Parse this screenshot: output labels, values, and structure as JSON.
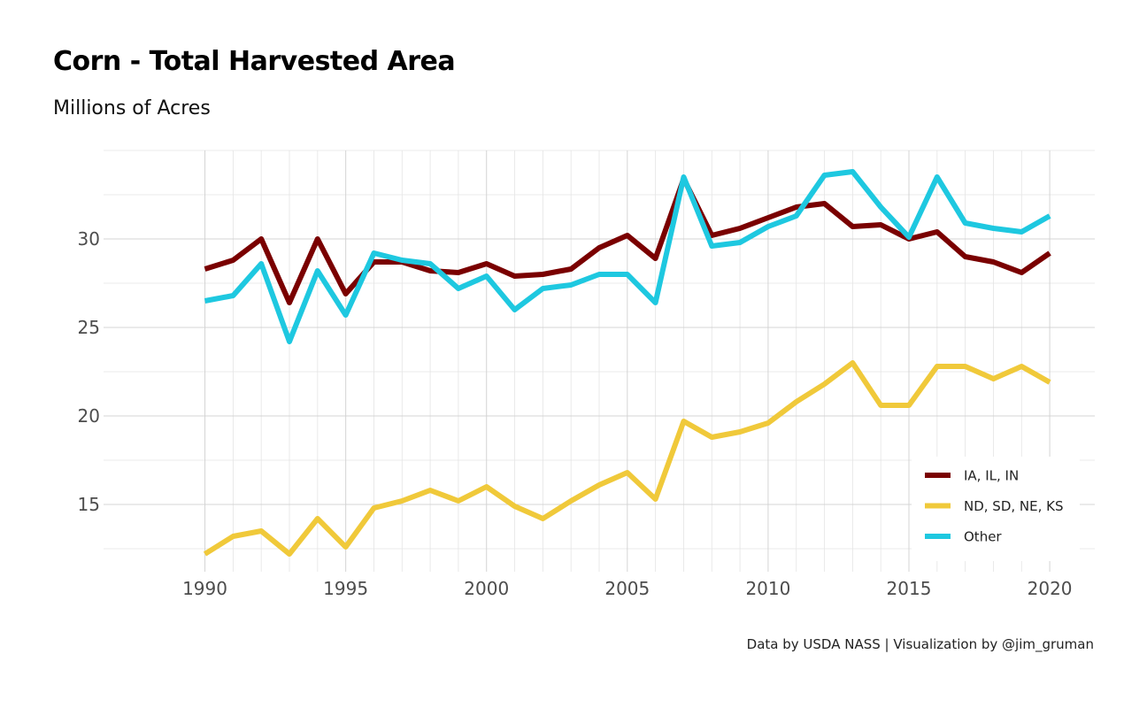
{
  "page": {
    "title": "Corn - Total Harvested Area",
    "subtitle": "Millions of Acres",
    "caption": "Data by USDA NASS | Visualization by @jim_gruman"
  },
  "chart_data": {
    "type": "line",
    "title": "Corn - Total Harvested Area",
    "subtitle": "Millions of Acres",
    "xlabel": "",
    "ylabel": "",
    "x": [
      1990,
      1991,
      1992,
      1993,
      1994,
      1995,
      1996,
      1997,
      1998,
      1999,
      2000,
      2001,
      2002,
      2003,
      2004,
      2005,
      2006,
      2007,
      2008,
      2009,
      2010,
      2011,
      2012,
      2013,
      2014,
      2015,
      2016,
      2017,
      2018,
      2019,
      2020
    ],
    "xlim": [
      1986.4,
      2021.6
    ],
    "ylim": [
      11.2,
      35.0
    ],
    "x_ticks": [
      1990,
      1995,
      2000,
      2005,
      2010,
      2015,
      2020
    ],
    "y_ticks": [
      15,
      20,
      25,
      30
    ],
    "grid": true,
    "legend_position": "bottom-right",
    "series": [
      {
        "name": "IA, IL, IN",
        "color": "#7a0000",
        "values": [
          28.3,
          28.8,
          30.0,
          26.4,
          30.0,
          26.9,
          28.7,
          28.7,
          28.2,
          28.1,
          28.6,
          27.9,
          28.0,
          28.3,
          29.5,
          30.2,
          28.9,
          33.4,
          30.2,
          30.6,
          31.2,
          31.8,
          32.0,
          30.7,
          30.8,
          30.0,
          30.4,
          29.0,
          28.7,
          28.1,
          29.2
        ]
      },
      {
        "name": "ND, SD, NE, KS",
        "color": "#f0c93a",
        "values": [
          12.2,
          13.2,
          13.5,
          12.2,
          14.2,
          12.6,
          14.8,
          15.2,
          15.8,
          15.2,
          16.0,
          14.9,
          14.2,
          15.2,
          16.1,
          16.8,
          15.3,
          19.7,
          18.8,
          19.1,
          19.6,
          20.8,
          21.8,
          23.0,
          20.6,
          20.6,
          22.8,
          22.8,
          22.1,
          22.8,
          21.9
        ]
      },
      {
        "name": "Other",
        "color": "#1ec8e0",
        "values": [
          26.5,
          26.8,
          28.6,
          24.2,
          28.2,
          25.7,
          29.2,
          28.8,
          28.6,
          27.2,
          27.9,
          26.0,
          27.2,
          27.4,
          28.0,
          28.0,
          26.4,
          33.5,
          29.6,
          29.8,
          30.7,
          31.3,
          33.6,
          33.8,
          31.8,
          30.1,
          33.5,
          30.9,
          30.6,
          30.4,
          31.3
        ]
      }
    ]
  }
}
